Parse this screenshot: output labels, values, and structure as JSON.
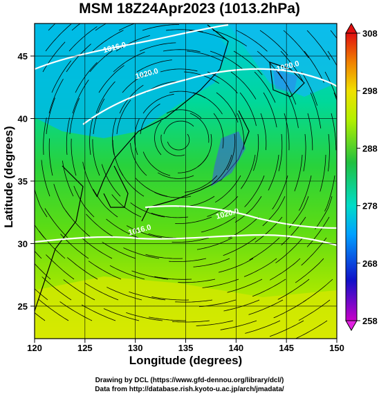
{
  "title": "MSM 18Z24Apr2023 (1013.2hPa)",
  "axes": {
    "xlabel": "Longitude (degrees)",
    "ylabel": "Latitude  (degrees)",
    "x_ticks": [
      120,
      125,
      130,
      135,
      140,
      145,
      150
    ],
    "y_ticks": [
      25,
      30,
      35,
      40,
      45
    ],
    "xlim": [
      120,
      150
    ],
    "ylim": [
      22.4,
      47.6
    ]
  },
  "colorbar": {
    "ticks": [
      258,
      268,
      278,
      288,
      298,
      308
    ],
    "range": [
      258,
      308
    ],
    "stops": [
      "#c800c8",
      "#1010c8",
      "#00a0ff",
      "#00dcc8",
      "#20c040",
      "#b4f000",
      "#f0e000",
      "#f08000",
      "#e01010"
    ]
  },
  "contour_labels": [
    {
      "text": "1016.0",
      "lon": 128.0,
      "lat": 45.5
    },
    {
      "text": "1020.0",
      "lon": 131.2,
      "lat": 43.4
    },
    {
      "text": "1020.0",
      "lon": 145.2,
      "lat": 44.0
    },
    {
      "text": "1016.0",
      "lon": 130.5,
      "lat": 30.9
    },
    {
      "text": "1020.0",
      "lon": 139.2,
      "lat": 32.2
    }
  ],
  "credits": {
    "line1": "Drawing by DCL (https://www.gfd-dennou.org/library/dcl/)",
    "line2": "Data from http://database.rish.kyoto-u.ac.jp/arch/jmadata/"
  }
}
